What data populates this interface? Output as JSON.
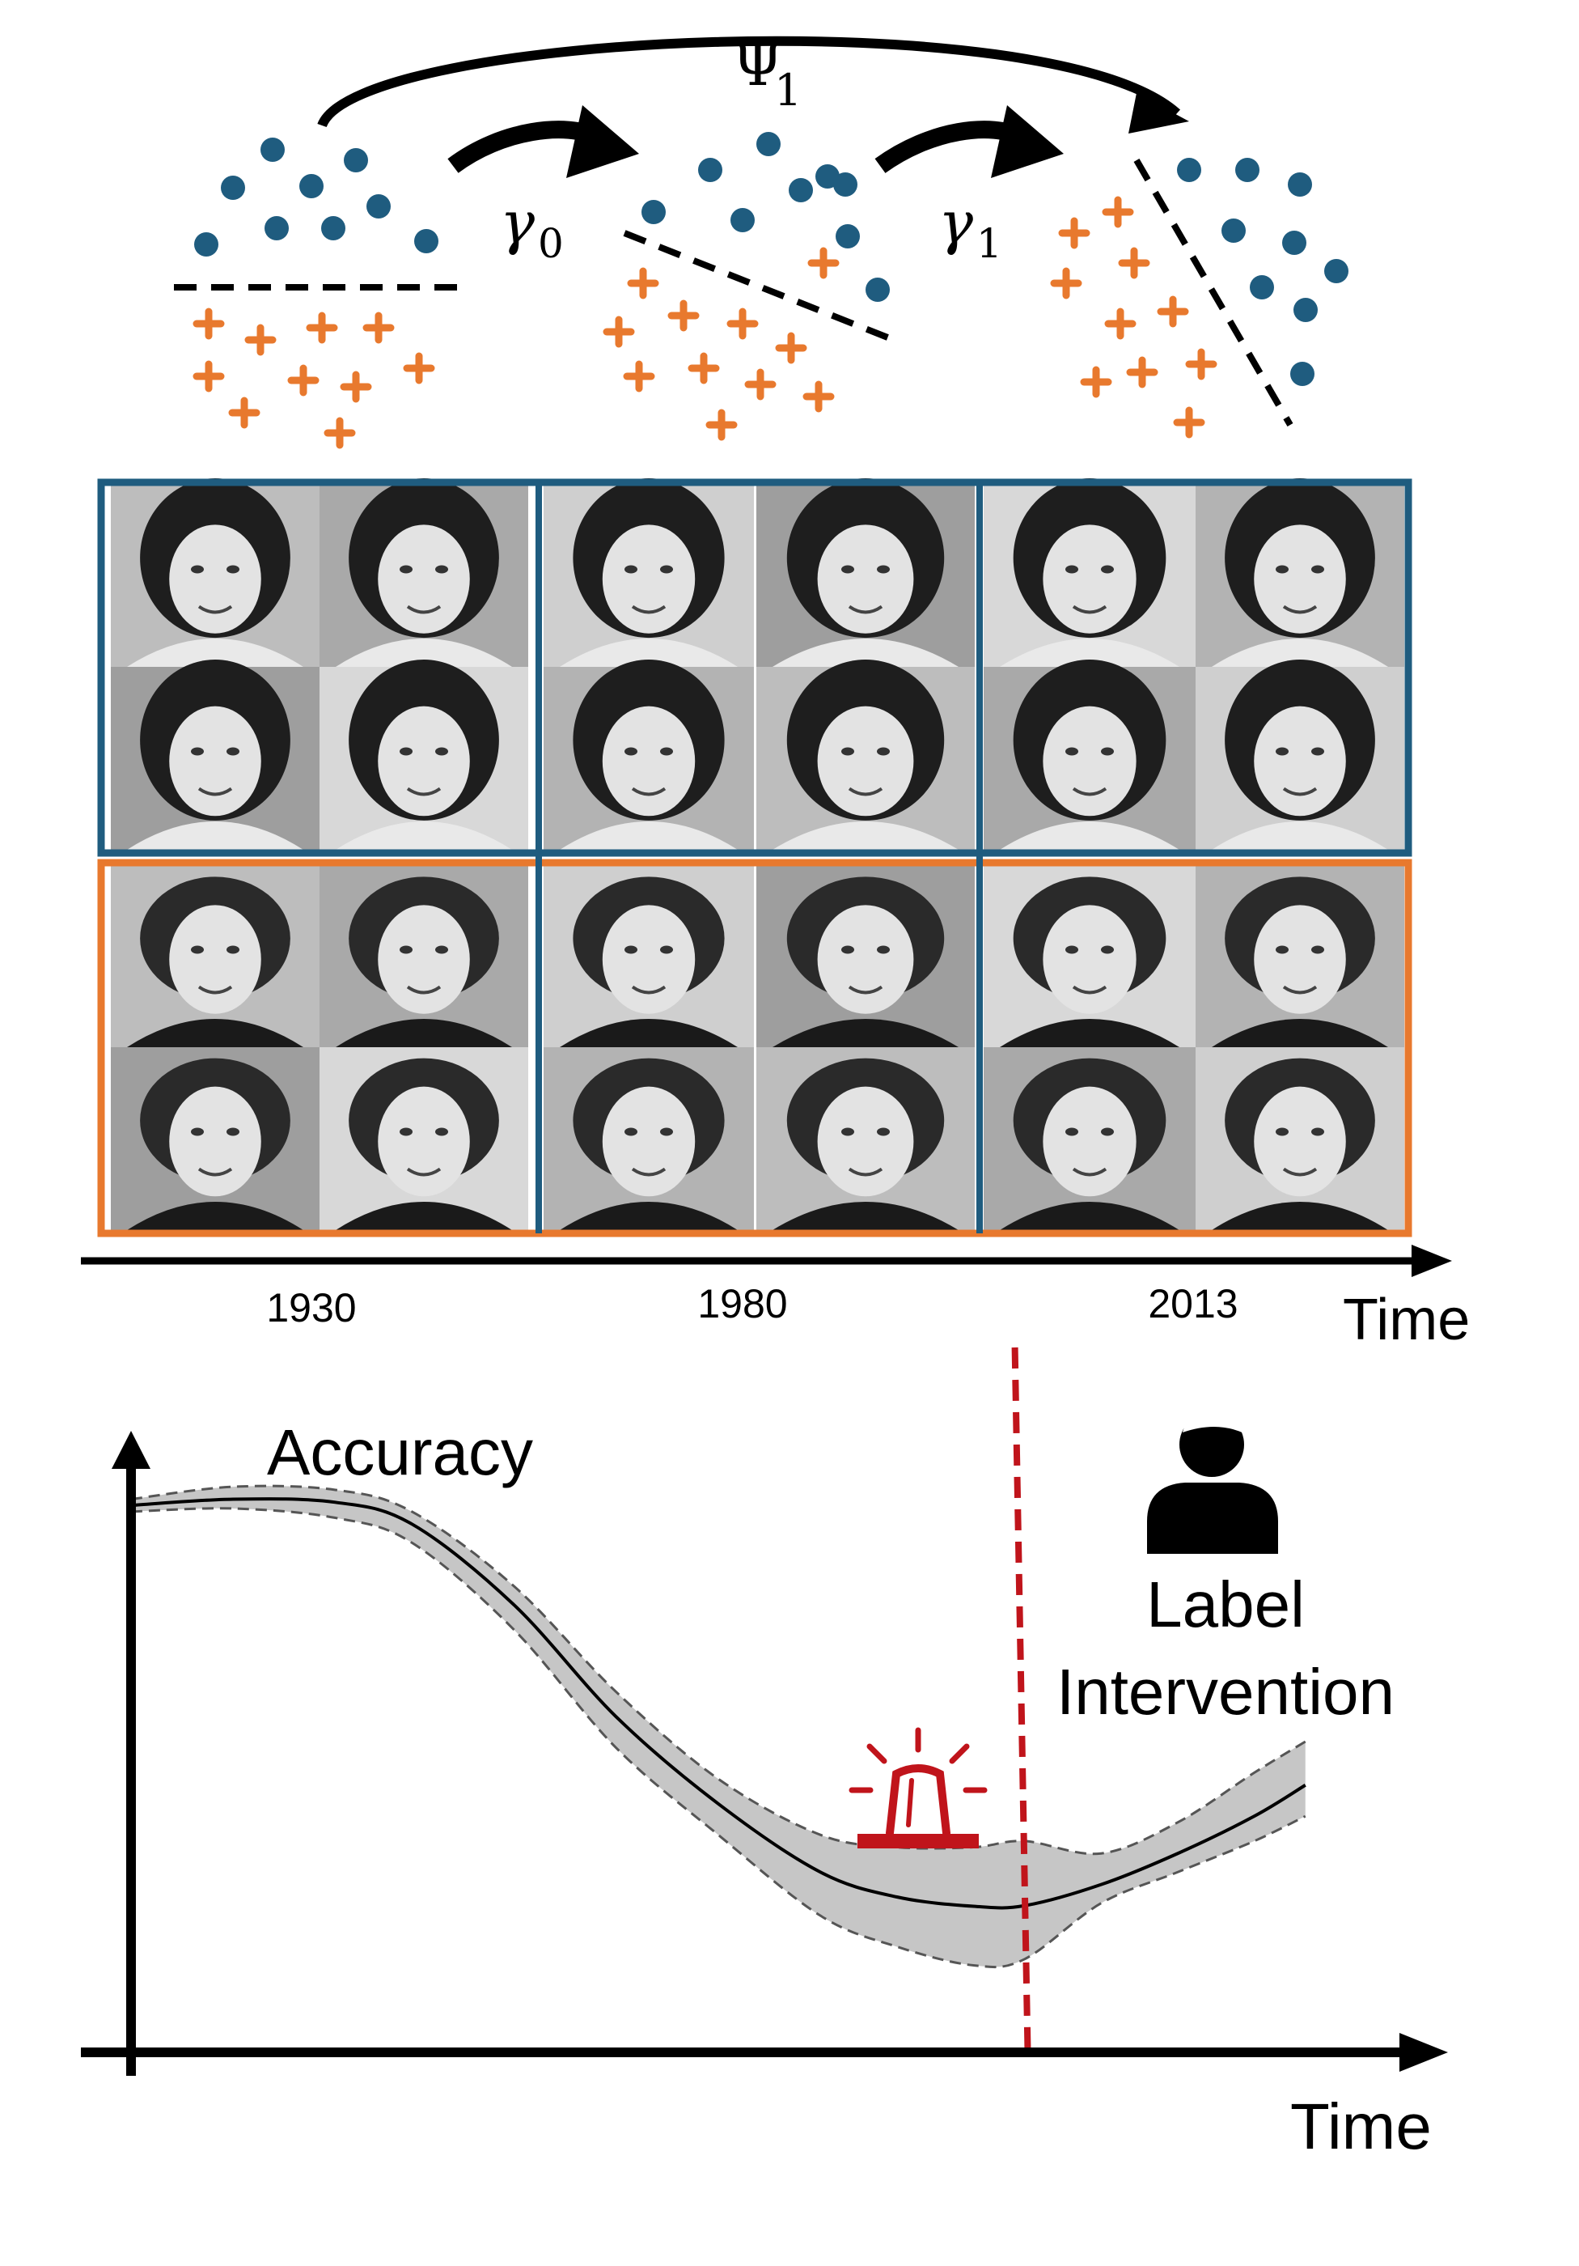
{
  "drift_diagram": {
    "transforms": [
      {
        "symbol": "γ",
        "subscript": "0"
      },
      {
        "symbol": "γ",
        "subscript": "1"
      }
    ],
    "long_transform": {
      "symbol": "Ψ",
      "subscript": "1"
    },
    "colors": {
      "class_circle": "#1f5c7f",
      "class_cross": "#e8792e",
      "boundary": "#000000"
    }
  },
  "photo_grid": {
    "rows": [
      {
        "group": "blue",
        "border_color": "#1f5c7f"
      },
      {
        "group": "orange",
        "border_color": "#e8792e"
      }
    ],
    "periods": [
      "1930",
      "1980",
      "2013"
    ],
    "axis_label": "Time"
  },
  "chart_data": {
    "type": "line",
    "ylabel": "Accuracy",
    "xlabel": "Time",
    "grid": false,
    "x": [
      0,
      8,
      16,
      22,
      30,
      38,
      46,
      54,
      60,
      66,
      70,
      76,
      82,
      88,
      92
    ],
    "series": [
      {
        "values": [
          0.88,
          0.89,
          0.885,
          0.85,
          0.72,
          0.54,
          0.4,
          0.29,
          0.25,
          0.235,
          0.236,
          0.27,
          0.32,
          0.38,
          0.43
        ]
      }
    ],
    "band_upper": [
      0.89,
      0.91,
      0.905,
      0.87,
      0.75,
      0.58,
      0.44,
      0.35,
      0.33,
      0.33,
      0.34,
      0.32,
      0.37,
      0.45,
      0.5
    ],
    "band_lower": [
      0.87,
      0.875,
      0.86,
      0.82,
      0.68,
      0.49,
      0.35,
      0.22,
      0.17,
      0.14,
      0.15,
      0.24,
      0.29,
      0.34,
      0.38
    ],
    "xlim": [
      0,
      100
    ],
    "ylim": [
      0,
      1
    ],
    "intervention_x": 70,
    "intervention_label": "Label\nIntervention",
    "alarm_icon": "alarm-siren-icon",
    "person_icon": "person-icon",
    "colors": {
      "line": "#000000",
      "band": "#c6c6c6",
      "band_edge": "#555555",
      "intervention": "#c0141b"
    }
  }
}
